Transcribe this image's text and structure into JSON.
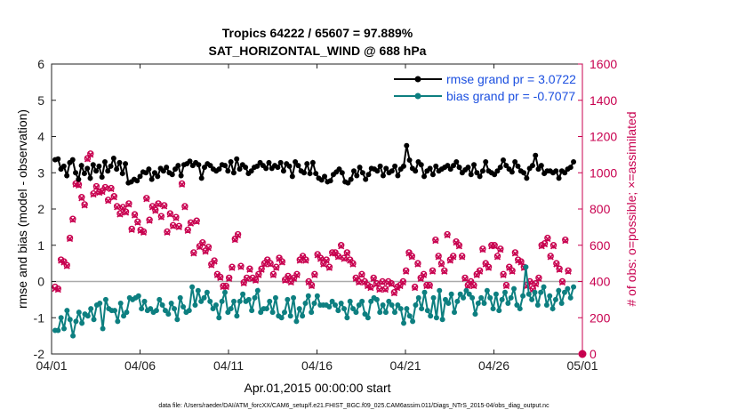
{
  "chart_data": {
    "type": "line",
    "title": "Tropics 64222 / 65607 = 97.889%",
    "subtitle": "SAT_HORIZONTAL_WIND @ 688 hPa",
    "xlabel": "Apr.01,2015 00:00:00 start",
    "ylabel_left": "rmse and bias (model - observation)",
    "ylabel_right": "# of obs: o=possible; ×=assimilated",
    "xlim": [
      0,
      30
    ],
    "ylim_left": [
      -2,
      6
    ],
    "ylim_right": [
      0,
      1600
    ],
    "x_ticks": [
      0,
      5,
      10,
      15,
      20,
      25,
      30
    ],
    "x_tick_labels": [
      "04/01",
      "04/06",
      "04/11",
      "04/16",
      "04/21",
      "04/26",
      "05/01"
    ],
    "y_ticks_left": [
      -2,
      -1,
      0,
      1,
      2,
      3,
      4,
      5,
      6
    ],
    "y_tick_labels_left": [
      "-2",
      "-1",
      "0",
      "1",
      "2",
      "3",
      "4",
      "5",
      "6"
    ],
    "y_ticks_right": [
      0,
      200,
      400,
      600,
      800,
      1000,
      1200,
      1400,
      1600
    ],
    "y_tick_labels_right": [
      "0",
      "200",
      "400",
      "600",
      "800",
      "1000",
      "1200",
      "1400",
      "1600"
    ],
    "legend_position": "top-right",
    "footer": "data file: /Users/raeder/DAI/ATM_forcXX/CAM6_setup/f.e21.FHIST_BGC.f09_025.CAM6assim.011/Diags_NTrS_2015-04/obs_diag_output.nc",
    "colors": {
      "rmse": "#000000",
      "bias": "#0d7f80",
      "obs": "#c8004f",
      "zero_line": "#aaaaaa",
      "legend_text": "#1b4fe0",
      "right_axis": "#c8004f"
    },
    "series": [
      {
        "name": "rmse grand pr = 3.0722",
        "axis": "left",
        "values": [
          3.36,
          3.38,
          3.1,
          3.18,
          2.92,
          3.28,
          3.36,
          3.0,
          2.82,
          3.2,
          2.98,
          3.12,
          2.85,
          3.22,
          3.05,
          3.18,
          2.88,
          3.3,
          3.05,
          3.18,
          3.4,
          3.1,
          3.28,
          2.98,
          3.25,
          2.72,
          2.75,
          2.82,
          2.78,
          2.9,
          3.02,
          3.0,
          3.1,
          2.82,
          3.0,
          2.9,
          3.12,
          3.05,
          3.15,
          3.0,
          2.95,
          3.1,
          3.2,
          2.92,
          3.22,
          3.25,
          3.32,
          3.2,
          3.28,
          3.22,
          2.85,
          3.15,
          3.25,
          3.2,
          3.1,
          3.05,
          3.1,
          3.22,
          3.2,
          3.05,
          3.3,
          3.0,
          3.38,
          3.1,
          3.22,
          3.15,
          2.98,
          3.05,
          3.15,
          3.18,
          3.28,
          3.2,
          3.12,
          3.28,
          3.12,
          3.2,
          3.15,
          3.28,
          3.05,
          3.25,
          3.18,
          2.9,
          3.3,
          3.2,
          3.05,
          3.0,
          3.25,
          2.98,
          3.28,
          2.98,
          2.85,
          2.8,
          2.9,
          2.75,
          2.78,
          2.95,
          3.02,
          3.1,
          3.0,
          2.75,
          2.72,
          2.82,
          3.05,
          2.92,
          3.15,
          3.0,
          2.82,
          2.95,
          3.12,
          3.1,
          3.05,
          3.18,
          2.92,
          3.12,
          3.0,
          3.05,
          3.18,
          2.92,
          3.1,
          3.18,
          3.75,
          3.35,
          3.12,
          3.05,
          3.3,
          3.22,
          2.9,
          3.05,
          3.12,
          2.95,
          3.18,
          3.05,
          3.1,
          3.15,
          3.2,
          3.1,
          3.2,
          3.3,
          3.15,
          3.0,
          3.08,
          3.15,
          2.95,
          3.22,
          3.0,
          2.9,
          3.05,
          3.3,
          3.05,
          3.0,
          2.95,
          3.05,
          3.15,
          3.35,
          3.2,
          3.1,
          3.02,
          3.3,
          3.18,
          3.05,
          3.0,
          2.85,
          3.12,
          3.2,
          3.48,
          3.1,
          3.2,
          2.98,
          3.05,
          3.05,
          3.0,
          3.05,
          2.85,
          3.05,
          3.0,
          3.1,
          3.15,
          3.3
        ]
      },
      {
        "name": "bias grand pr = -0.7077",
        "axis": "left",
        "values": [
          -1.35,
          -1.35,
          -1.0,
          -1.3,
          -0.8,
          -1.05,
          -1.5,
          -1.1,
          -0.85,
          -1.15,
          -0.9,
          -0.95,
          -0.75,
          -1.05,
          -0.65,
          -0.6,
          -1.3,
          -0.5,
          -0.75,
          -0.8,
          -0.8,
          -1.1,
          -0.6,
          -0.95,
          -0.85,
          -0.45,
          -0.5,
          -0.45,
          -0.4,
          -0.75,
          -0.55,
          -0.8,
          -0.75,
          -0.85,
          -0.8,
          -0.5,
          -0.65,
          -0.8,
          -0.9,
          -0.6,
          -0.75,
          -1.05,
          -0.45,
          -0.7,
          -0.85,
          -0.8,
          -0.15,
          -0.65,
          -0.25,
          -0.55,
          -0.45,
          -0.3,
          -0.55,
          -0.75,
          -0.65,
          -1.0,
          -0.55,
          -0.3,
          -0.85,
          -0.75,
          -0.55,
          -0.95,
          -0.55,
          -0.35,
          -0.55,
          -0.5,
          -0.8,
          -0.45,
          -0.25,
          -0.85,
          -0.75,
          -0.75,
          -0.55,
          -0.85,
          -0.45,
          -0.95,
          -1.0,
          -0.85,
          -0.5,
          -0.95,
          -0.45,
          -1.1,
          -0.75,
          -0.95,
          -0.6,
          -0.4,
          -0.85,
          -0.6,
          -0.4,
          -0.65,
          -0.65,
          -0.65,
          -0.7,
          -0.55,
          -0.65,
          -0.8,
          -0.6,
          -0.75,
          -1.0,
          -0.55,
          -0.75,
          -0.85,
          -0.65,
          -0.55,
          -0.9,
          -1.0,
          -0.55,
          -0.45,
          -0.5,
          -0.85,
          -0.65,
          -0.85,
          -0.55,
          -0.65,
          -0.85,
          -0.65,
          -0.75,
          -1.15,
          -0.75,
          -0.95,
          -1.1,
          -0.65,
          -0.45,
          -0.75,
          -0.3,
          -0.8,
          -0.95,
          -0.45,
          -1.0,
          -0.25,
          -1.05,
          -0.5,
          -0.6,
          -0.35,
          -0.85,
          -0.55,
          -0.35,
          -0.45,
          -0.25,
          -0.35,
          -0.45,
          -0.9,
          -0.6,
          -0.45,
          -0.6,
          -0.25,
          -0.45,
          -0.75,
          -0.35,
          -0.8,
          -0.5,
          -0.3,
          -0.6,
          -0.45,
          -0.2,
          -0.65,
          -0.75,
          -0.4,
          0.4,
          -0.35,
          -0.5,
          -0.3,
          -0.65,
          -0.3,
          -0.15,
          -0.65,
          -0.4,
          -0.75,
          -0.5,
          -0.25,
          -0.6,
          -0.3,
          -0.2,
          -0.45,
          -0.15
        ]
      }
    ],
    "obs_possible": {
      "axis": "right",
      "values": [
        370,
        360,
        520,
        510,
        490,
        640,
        745,
        940,
        935,
        865,
        825,
        1080,
        1105,
        885,
        925,
        895,
        900,
        920,
        850,
        915,
        870,
        815,
        775,
        810,
        785,
        830,
        690,
        770,
        730,
        685,
        675,
        860,
        740,
        815,
        795,
        830,
        760,
        820,
        675,
        775,
        710,
        755,
        705,
        940,
        815,
        685,
        725,
        560,
        735,
        595,
        615,
        570,
        590,
        495,
        515,
        440,
        425,
        375,
        375,
        420,
        480,
        635,
        660,
        485,
        395,
        420,
        470,
        420,
        410,
        440,
        470,
        500,
        520,
        500,
        440,
        480,
        530,
        510,
        410,
        430,
        400,
        420,
        440,
        520,
        540,
        520,
        400,
        380,
        440,
        550,
        530,
        500,
        520,
        480,
        560,
        560,
        540,
        600,
        530,
        560,
        520,
        500,
        420,
        400,
        440,
        400,
        380,
        370,
        420,
        390,
        360,
        400,
        360,
        400,
        390,
        340,
        370,
        380,
        400,
        460,
        560,
        540,
        370,
        500,
        420,
        440,
        380,
        380,
        460,
        630,
        540,
        500,
        460,
        660,
        520,
        540,
        620,
        600,
        540,
        420,
        380,
        400,
        380,
        440,
        460,
        580,
        500,
        480,
        600,
        600,
        540,
        580,
        440,
        380,
        480,
        460,
        560,
        520,
        510,
        480,
        380,
        400,
        360,
        390,
        420,
        600,
        610,
        640,
        540,
        600,
        500,
        470,
        400,
        630,
        460
      ]
    },
    "obs_assimilated": {
      "axis": "right",
      "values": [
        360,
        355,
        515,
        505,
        485,
        635,
        740,
        935,
        930,
        860,
        820,
        1075,
        1100,
        880,
        920,
        890,
        895,
        915,
        845,
        910,
        865,
        810,
        770,
        805,
        780,
        825,
        685,
        765,
        725,
        680,
        670,
        855,
        735,
        810,
        790,
        825,
        755,
        815,
        670,
        770,
        705,
        750,
        700,
        935,
        810,
        680,
        720,
        555,
        730,
        590,
        610,
        565,
        585,
        490,
        510,
        435,
        420,
        370,
        370,
        415,
        475,
        630,
        655,
        480,
        390,
        415,
        465,
        415,
        405,
        435,
        465,
        495,
        515,
        495,
        435,
        475,
        525,
        505,
        405,
        425,
        395,
        415,
        435,
        515,
        535,
        515,
        395,
        375,
        435,
        545,
        525,
        495,
        515,
        475,
        555,
        555,
        535,
        595,
        525,
        555,
        515,
        495,
        415,
        395,
        435,
        395,
        375,
        365,
        415,
        385,
        355,
        395,
        355,
        395,
        385,
        335,
        365,
        375,
        395,
        455,
        555,
        535,
        365,
        495,
        415,
        435,
        375,
        375,
        455,
        625,
        535,
        495,
        455,
        655,
        515,
        535,
        615,
        595,
        535,
        415,
        375,
        395,
        375,
        435,
        455,
        575,
        495,
        475,
        595,
        595,
        535,
        575,
        435,
        375,
        475,
        455,
        555,
        515,
        505,
        475,
        375,
        395,
        355,
        385,
        415,
        595,
        605,
        635,
        535,
        595,
        495,
        465,
        395,
        625,
        455
      ]
    },
    "obs_x_interval": 0.1666667,
    "final_obs_point": {
      "x": 30,
      "y": 0
    }
  }
}
